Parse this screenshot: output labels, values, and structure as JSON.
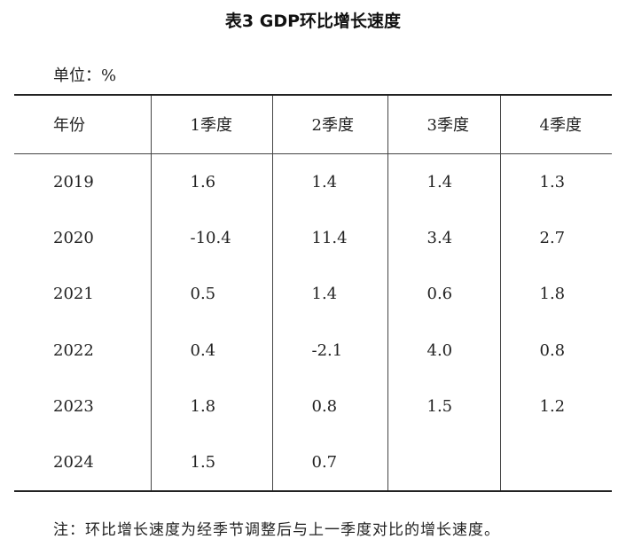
{
  "title": "表3 GDP环比增长速度",
  "unit": "单位：%",
  "table": {
    "headers": [
      "年份",
      "1季度",
      "2季度",
      "3季度",
      "4季度"
    ],
    "rows": [
      [
        "2019",
        "1.6",
        "1.4",
        "1.4",
        "1.3"
      ],
      [
        "2020",
        "-10.4",
        "11.4",
        "3.4",
        "2.7"
      ],
      [
        "2021",
        "0.5",
        "1.4",
        "0.6",
        "1.8"
      ],
      [
        "2022",
        "0.4",
        "-2.1",
        "4.0",
        "0.8"
      ],
      [
        "2023",
        "1.8",
        "0.8",
        "1.5",
        "1.2"
      ],
      [
        "2024",
        "1.5",
        "0.7",
        "",
        ""
      ]
    ]
  },
  "note": "注：环比增长速度为经季节调整后与上一季度对比的增长速度。"
}
